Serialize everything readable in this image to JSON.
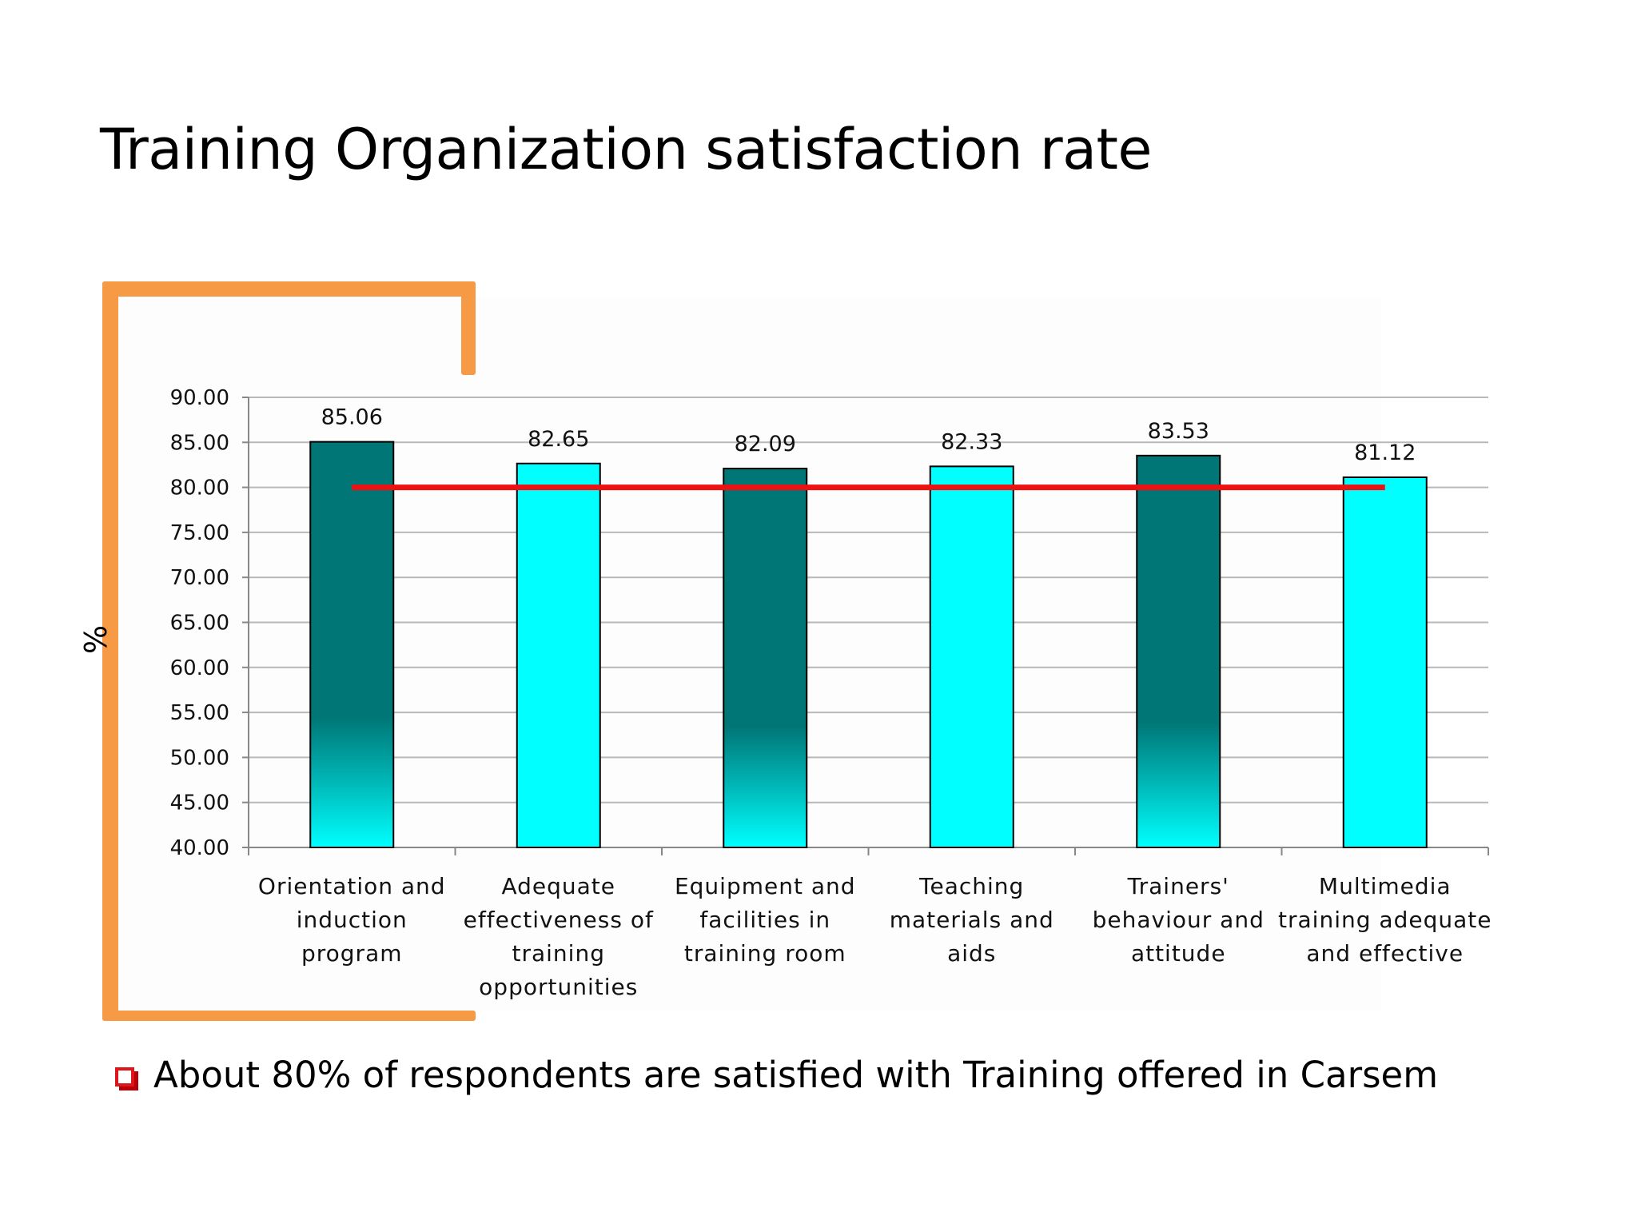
{
  "slide": {
    "title": "Training Organization satisfaction rate",
    "bullet": "About 80% of respondents are satisfied with Training offered in Carsem",
    "accent_color": "#f79a46",
    "bullet_color": "#e0151b"
  },
  "chart_data": {
    "type": "bar",
    "title": "",
    "xlabel": "",
    "ylabel": "%",
    "ylim": [
      40,
      90
    ],
    "ytick_step": 5,
    "ytick_labels": [
      "40.00",
      "45.00",
      "50.00",
      "55.00",
      "60.00",
      "65.00",
      "70.00",
      "75.00",
      "80.00",
      "85.00",
      "90.00"
    ],
    "grid": true,
    "categories": [
      [
        "Orientation and",
        "induction",
        "program"
      ],
      [
        "Adequate",
        "effectiveness of",
        "training",
        "opportunities"
      ],
      [
        "Equipment and",
        "facilities in",
        "training room"
      ],
      [
        "Teaching",
        "materials and",
        "aids"
      ],
      [
        "Trainers'",
        "behaviour and",
        "attitude"
      ],
      [
        "Multimedia",
        "training adequate",
        "and effective"
      ]
    ],
    "values": [
      85.06,
      82.65,
      82.09,
      82.33,
      83.53,
      81.12
    ],
    "data_labels": [
      "85.06",
      "82.65",
      "82.09",
      "82.33",
      "83.53",
      "81.12"
    ],
    "bar_colors": [
      "#007676",
      "#00ffff",
      "#007676",
      "#00ffff",
      "#007676",
      "#00ffff"
    ],
    "reference_line": {
      "value": 80,
      "color": "#ee1111"
    }
  }
}
